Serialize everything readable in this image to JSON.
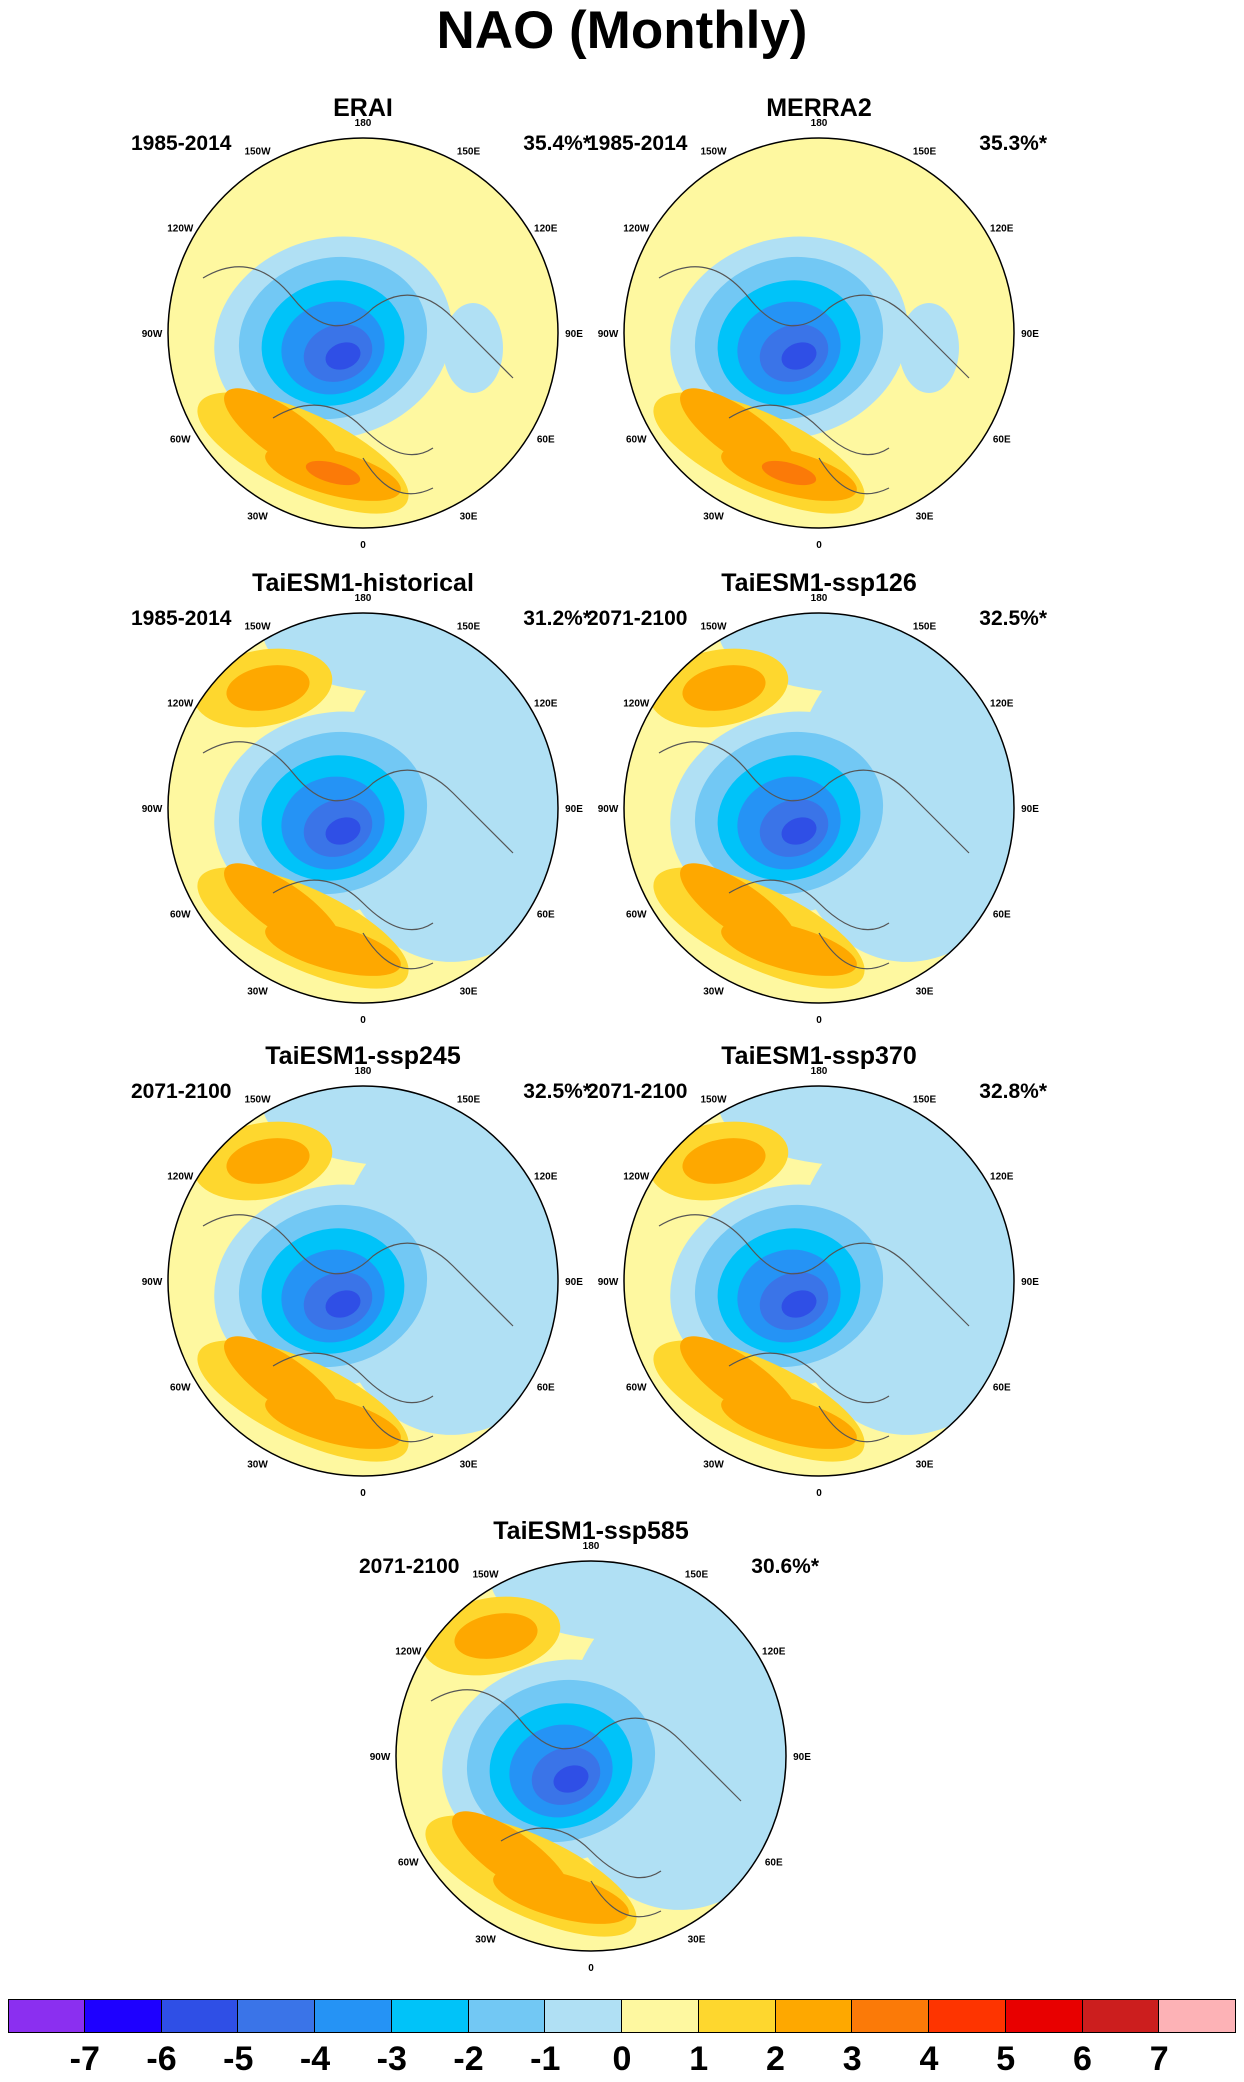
{
  "title": "NAO (Monthly)",
  "panels": [
    {
      "name": "ERAI",
      "period": "1985-2014",
      "variance": "35.4%*",
      "pattern": "obs"
    },
    {
      "name": "MERRA2",
      "period": "1985-2014",
      "variance": "35.3%*",
      "pattern": "obs"
    },
    {
      "name": "TaiESM1-historical",
      "period": "1985-2014",
      "variance": "31.2%*",
      "pattern": "model"
    },
    {
      "name": "TaiESM1-ssp126",
      "period": "2071-2100",
      "variance": "32.5%*",
      "pattern": "model"
    },
    {
      "name": "TaiESM1-ssp245",
      "period": "2071-2100",
      "variance": "32.5%*",
      "pattern": "model"
    },
    {
      "name": "TaiESM1-ssp370",
      "period": "2071-2100",
      "variance": "32.8%*",
      "pattern": "model"
    },
    {
      "name": "TaiESM1-ssp585",
      "period": "2071-2100",
      "variance": "30.6%*",
      "pattern": "model"
    }
  ],
  "longitude_labels": [
    "180",
    "150E",
    "120E",
    "90E",
    "60E",
    "30E",
    "0",
    "30W",
    "60W",
    "90W",
    "120W",
    "150W"
  ],
  "colorbar": {
    "labels": [
      "-7",
      "-6",
      "-5",
      "-4",
      "-3",
      "-2",
      "-1",
      "0",
      "1",
      "2",
      "3",
      "4",
      "5",
      "6",
      "7"
    ],
    "colors": [
      "#8b2ff0",
      "#1e00ff",
      "#2f4fe6",
      "#3a74e8",
      "#2593f5",
      "#00c3f9",
      "#72c8f4",
      "#b0e0f4",
      "#fef8a0",
      "#fed72e",
      "#fea800",
      "#fb7a08",
      "#fe3400",
      "#e80000",
      "#cc1e1e",
      "#fdb2b6"
    ]
  }
}
